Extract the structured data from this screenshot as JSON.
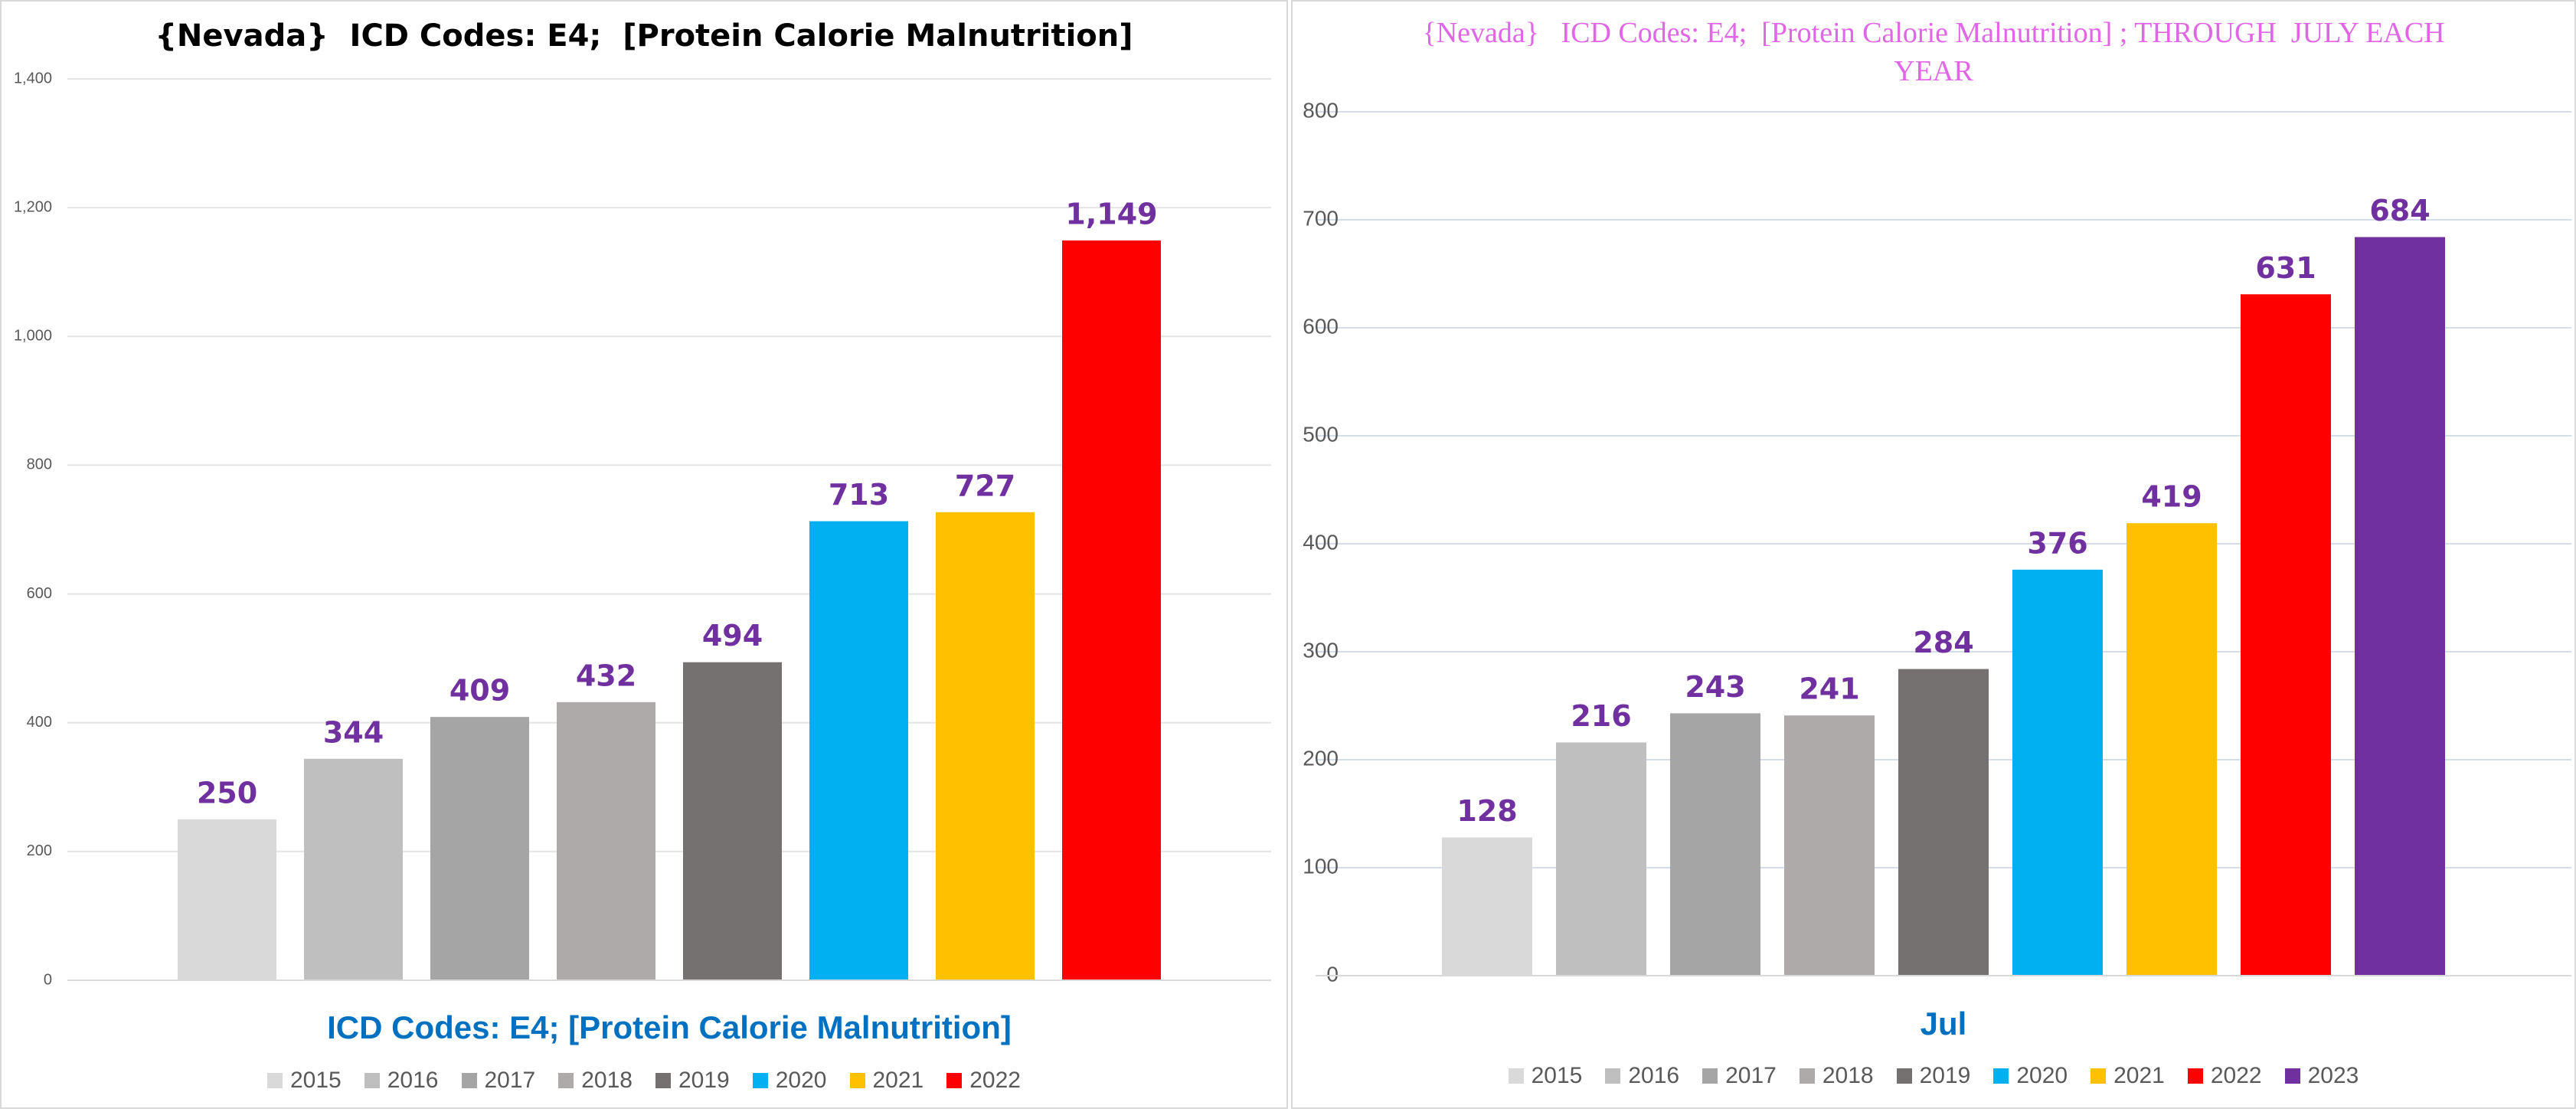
{
  "chart_data": [
    {
      "type": "bar",
      "title": "{Nevada}  ICD Codes: E4;  [Protein Calorie Malnutrition]",
      "categories": [
        "ICD Codes: E4;  [Protein Calorie Malnutrition]"
      ],
      "series": [
        {
          "name": "2015",
          "color": "#d9d9d9",
          "values": [
            250
          ]
        },
        {
          "name": "2016",
          "color": "#bfbfbf",
          "values": [
            344
          ]
        },
        {
          "name": "2017",
          "color": "#a5a5a5",
          "values": [
            409
          ]
        },
        {
          "name": "2018",
          "color": "#aeaaaa",
          "values": [
            432
          ]
        },
        {
          "name": "2019",
          "color": "#757171",
          "values": [
            494
          ]
        },
        {
          "name": "2020",
          "color": "#00b0f0",
          "values": [
            713
          ]
        },
        {
          "name": "2021",
          "color": "#ffc000",
          "values": [
            727
          ]
        },
        {
          "name": "2022",
          "color": "#ff0000",
          "values": [
            1149
          ],
          "value_labels": [
            "1,149"
          ]
        }
      ],
      "ylim": [
        0,
        1400
      ],
      "yticks": [
        0,
        200,
        400,
        600,
        800,
        {
          "value": 1000,
          "label": "1,000"
        },
        {
          "value": 1200,
          "label": "1,200"
        },
        {
          "value": 1400,
          "label": "1,400"
        }
      ],
      "grid": true,
      "legend": "bottom"
    },
    {
      "type": "bar",
      "title": "{Nevada}   ICD Codes: E4;  [Protein Calorie Malnutrition] ; THROUGH  JULY EACH YEAR",
      "categories": [
        "Jul"
      ],
      "series": [
        {
          "name": "2015",
          "color": "#d9d9d9",
          "values": [
            128
          ]
        },
        {
          "name": "2016",
          "color": "#bfbfbf",
          "values": [
            216
          ]
        },
        {
          "name": "2017",
          "color": "#a5a5a5",
          "values": [
            243
          ]
        },
        {
          "name": "2018",
          "color": "#aeaaaa",
          "values": [
            241
          ]
        },
        {
          "name": "2019",
          "color": "#757171",
          "values": [
            284
          ]
        },
        {
          "name": "2020",
          "color": "#00b0f0",
          "values": [
            376
          ]
        },
        {
          "name": "2021",
          "color": "#ffc000",
          "values": [
            419
          ]
        },
        {
          "name": "2022",
          "color": "#ff0000",
          "values": [
            631
          ]
        },
        {
          "name": "2023",
          "color": "#7030a0",
          "values": [
            684
          ]
        }
      ],
      "ylim": [
        0,
        800
      ],
      "yticks": [
        0,
        100,
        200,
        300,
        400,
        500,
        600,
        700,
        800
      ],
      "grid": true,
      "legend": "bottom"
    }
  ]
}
